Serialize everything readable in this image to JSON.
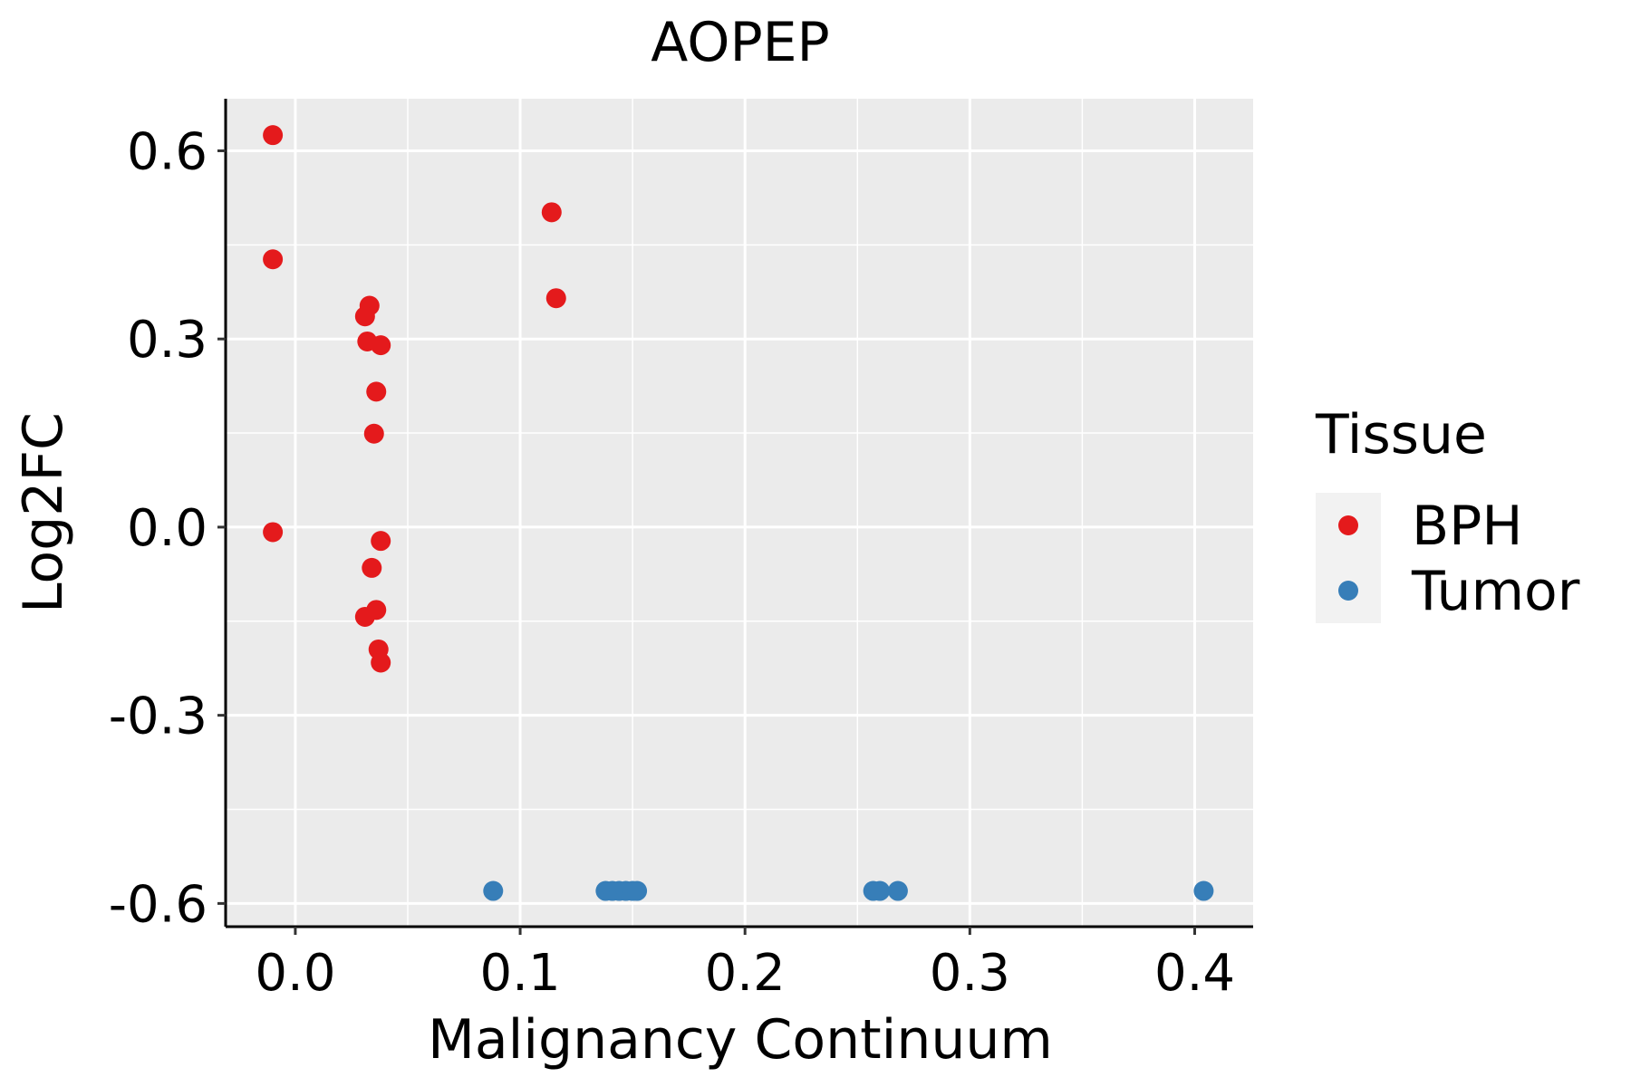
{
  "chart_data": {
    "type": "scatter",
    "title": "AOPEP",
    "xlabel": "Malignancy Continuum",
    "ylabel": "Log2FC",
    "xlim": [
      -0.031,
      0.426
    ],
    "ylim": [
      -0.637,
      0.683
    ],
    "x_ticks": [
      0.0,
      0.1,
      0.2,
      0.3,
      0.4
    ],
    "x_tick_labels": [
      "0.0",
      "0.1",
      "0.2",
      "0.3",
      "0.4"
    ],
    "y_ticks": [
      -0.6,
      -0.3,
      0.0,
      0.3,
      0.6
    ],
    "y_tick_labels": [
      "-0.6",
      "-0.3",
      "0.0",
      "0.3",
      "0.6"
    ],
    "grid": true,
    "background": "#EBEBEB",
    "legend": {
      "title": "Tissue",
      "position": "right",
      "entries": [
        {
          "label": "BPH",
          "color": "#E41A1C"
        },
        {
          "label": "Tumor",
          "color": "#377EB8"
        }
      ]
    },
    "series": [
      {
        "name": "BPH",
        "color": "#E41A1C",
        "points": [
          {
            "x": -0.01,
            "y": 0.625
          },
          {
            "x": -0.01,
            "y": 0.427
          },
          {
            "x": -0.01,
            "y": -0.008
          },
          {
            "x": 0.114,
            "y": 0.502
          },
          {
            "x": 0.116,
            "y": 0.365
          },
          {
            "x": 0.033,
            "y": 0.353
          },
          {
            "x": 0.031,
            "y": 0.336
          },
          {
            "x": 0.032,
            "y": 0.296
          },
          {
            "x": 0.038,
            "y": 0.29
          },
          {
            "x": 0.036,
            "y": 0.216
          },
          {
            "x": 0.035,
            "y": 0.149
          },
          {
            "x": 0.038,
            "y": -0.022
          },
          {
            "x": 0.034,
            "y": -0.065
          },
          {
            "x": 0.036,
            "y": -0.132
          },
          {
            "x": 0.031,
            "y": -0.143
          },
          {
            "x": 0.037,
            "y": -0.195
          },
          {
            "x": 0.038,
            "y": -0.216
          }
        ]
      },
      {
        "name": "Tumor",
        "color": "#377EB8",
        "points": [
          {
            "x": 0.088,
            "y": -0.58
          },
          {
            "x": 0.138,
            "y": -0.58
          },
          {
            "x": 0.141,
            "y": -0.58
          },
          {
            "x": 0.144,
            "y": -0.58
          },
          {
            "x": 0.147,
            "y": -0.58
          },
          {
            "x": 0.15,
            "y": -0.58
          },
          {
            "x": 0.152,
            "y": -0.58
          },
          {
            "x": 0.257,
            "y": -0.58
          },
          {
            "x": 0.26,
            "y": -0.58
          },
          {
            "x": 0.268,
            "y": -0.58
          },
          {
            "x": 0.404,
            "y": -0.58
          }
        ]
      }
    ]
  }
}
